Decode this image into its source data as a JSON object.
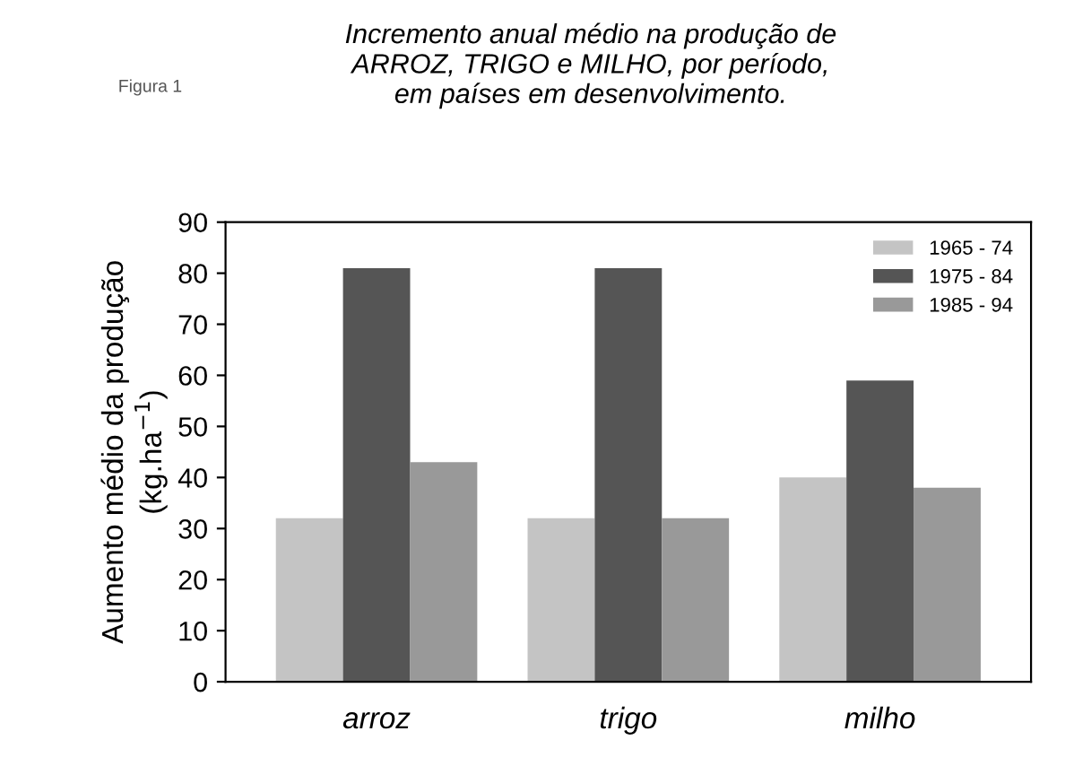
{
  "chart_data": {
    "type": "bar",
    "title": "Incremento anual médio na produção de\nARROZ, TRIGO e MILHO, por período,\nem países em desenvolvimento.",
    "ylabel": "Aumento médio da produção\n(kg.ha$^{−1}$)",
    "annotations": [
      "Figura 1"
    ],
    "categories": [
      "arroz",
      "trigo",
      "milho"
    ],
    "series": [
      {
        "name": "1965 - 74",
        "color": "#c4c4c4",
        "values": [
          32,
          32,
          40
        ]
      },
      {
        "name": "1975 - 84",
        "color": "#555555",
        "values": [
          81,
          81,
          59
        ]
      },
      {
        "name": "1985 - 94",
        "color": "#999999",
        "values": [
          43,
          32,
          38
        ]
      }
    ],
    "ylim": [
      0,
      90
    ],
    "yticks": [
      0,
      10,
      20,
      30,
      40,
      50,
      60,
      70,
      80,
      90
    ],
    "grid": false,
    "legend": "top right"
  }
}
